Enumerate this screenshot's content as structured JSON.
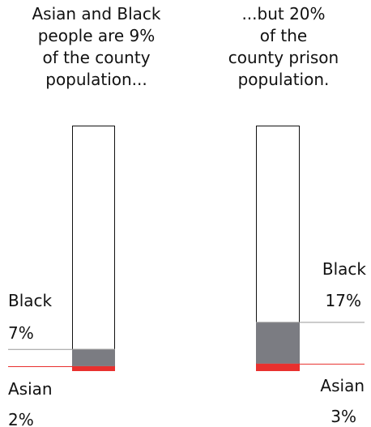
{
  "captions": {
    "left": [
      "Asian and Black",
      "people are 9%",
      "of the county",
      "population..."
    ],
    "right": [
      "...but 20%",
      "of the",
      "county prison",
      "population."
    ]
  },
  "colors": {
    "black_segment": "#7b7c82",
    "asian_segment": "#e8302e",
    "bar_outline": "#111111",
    "black_leader": "#999999",
    "asian_leader": "#e8302e",
    "background": "#ffffff",
    "text": "#111111"
  },
  "chart_data": {
    "type": "bar",
    "stacked": true,
    "categories": [
      "county population",
      "county prison population"
    ],
    "ylim": [
      0,
      100
    ],
    "series": [
      {
        "name": "Asian",
        "values": [
          2,
          3
        ]
      },
      {
        "name": "Black",
        "values": [
          7,
          17
        ]
      }
    ],
    "labels": {
      "bar1": {
        "black": {
          "name": "Black",
          "value": "7%"
        },
        "asian": {
          "name": "Asian",
          "value": "2%"
        }
      },
      "bar2": {
        "black": {
          "name": "Black",
          "value": "17%"
        },
        "asian": {
          "name": "Asian",
          "value": "3%"
        }
      }
    }
  }
}
